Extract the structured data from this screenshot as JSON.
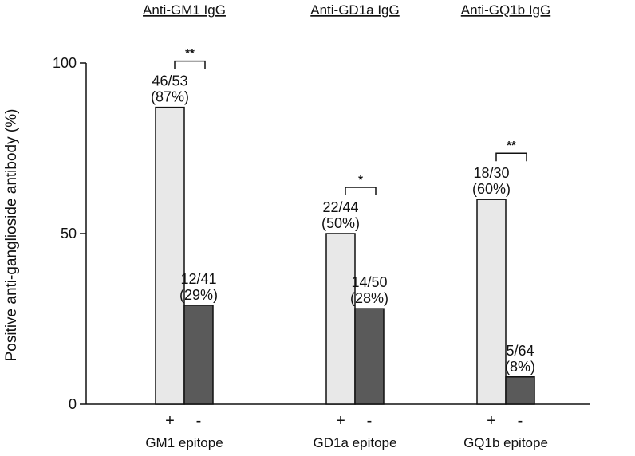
{
  "chart_data": {
    "type": "bar",
    "ylabel": "Positive anti-ganglioside antibody (%)",
    "ylim": [
      0,
      100
    ],
    "yticks": [
      0,
      50,
      100
    ],
    "groups": [
      {
        "title": "Anti-GM1 IgG",
        "xlabel": "GM1 epitope",
        "bars": [
          {
            "sign": "+",
            "value": 87,
            "label_count": "46/53",
            "label_pct": "(87%)",
            "color": "#e8e8e8"
          },
          {
            "sign": "-",
            "value": 29,
            "label_count": "12/41",
            "label_pct": "(29%)",
            "color": "#5a5a5a"
          }
        ],
        "significance": "**"
      },
      {
        "title": "Anti-GD1a IgG",
        "xlabel": "GD1a epitope",
        "bars": [
          {
            "sign": "+",
            "value": 50,
            "label_count": "22/44",
            "label_pct": "(50%)",
            "color": "#e8e8e8"
          },
          {
            "sign": "-",
            "value": 28,
            "label_count": "14/50",
            "label_pct": "(28%)",
            "color": "#5a5a5a"
          }
        ],
        "significance": "*"
      },
      {
        "title": "Anti-GQ1b IgG",
        "xlabel": "GQ1b epitope",
        "bars": [
          {
            "sign": "+",
            "value": 60,
            "label_count": "18/30",
            "label_pct": "(60%)",
            "color": "#e8e8e8"
          },
          {
            "sign": "-",
            "value": 8,
            "label_count": "5/64",
            "label_pct": "(8%)",
            "color": "#5a5a5a"
          }
        ],
        "significance": "**"
      }
    ]
  }
}
